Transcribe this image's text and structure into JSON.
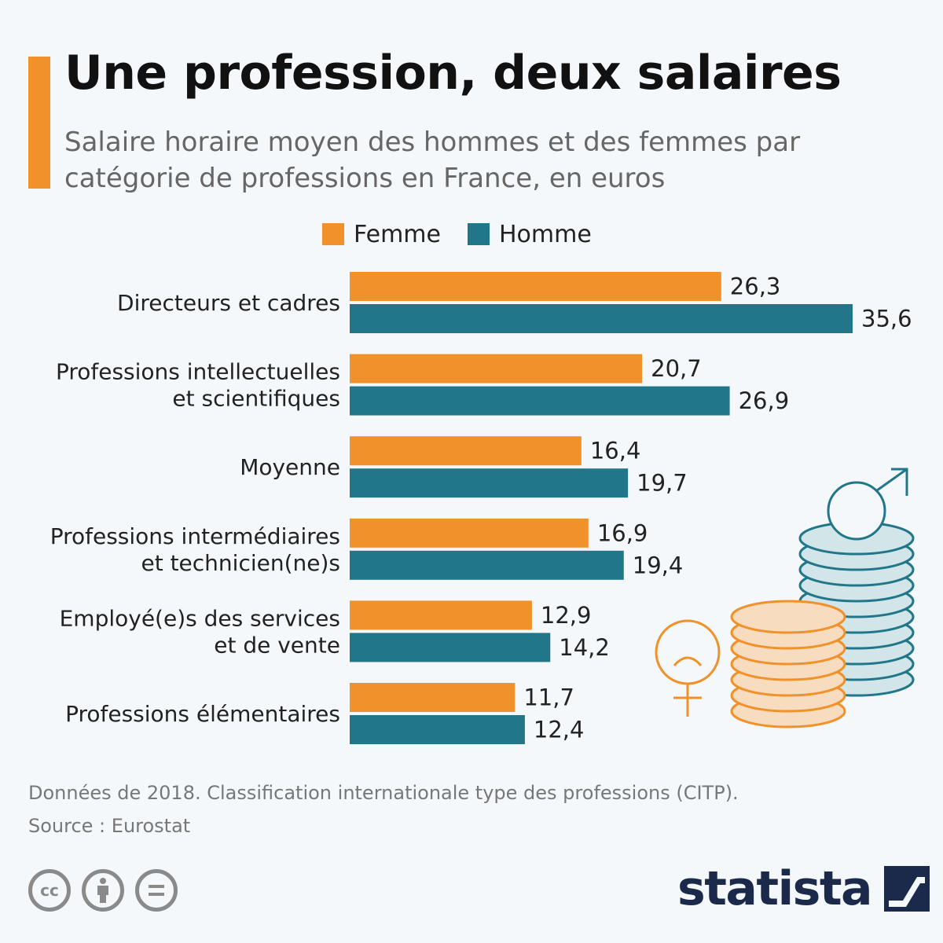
{
  "header": {
    "title": "Une profession, deux salaires",
    "subtitle": "Salaire horaire moyen des hommes et des femmes par catégorie de professions en France, en euros"
  },
  "colors": {
    "femme": "#f0912a",
    "homme": "#227689",
    "accent": "#f0912a",
    "brand": "#1b2a4a"
  },
  "chart_data": {
    "type": "bar",
    "orientation": "horizontal",
    "categories": [
      [
        "Directeurs et cadres"
      ],
      [
        "Professions intellectuelles",
        "et scientifiques"
      ],
      [
        "Moyenne"
      ],
      [
        "Professions intermédiaires",
        "et technicien(ne)s"
      ],
      [
        "Employé(e)s des services",
        "et de vente"
      ],
      [
        "Professions élémentaires"
      ]
    ],
    "series": [
      {
        "name": "Femme",
        "color": "#f0912a",
        "values": [
          26.3,
          20.7,
          16.4,
          16.9,
          12.9,
          11.7
        ],
        "labels": [
          "26,3",
          "20,7",
          "16,4",
          "16,9",
          "12,9",
          "11,7"
        ]
      },
      {
        "name": "Homme",
        "color": "#227689",
        "values": [
          35.6,
          26.9,
          19.7,
          19.4,
          14.2,
          12.4
        ],
        "labels": [
          "35,6",
          "26,9",
          "19,7",
          "19,4",
          "14,2",
          "12,4"
        ]
      }
    ],
    "xlim": [
      0,
      35.6
    ],
    "grid": false,
    "legend": "top"
  },
  "footnote": {
    "line1": "Données de 2018. Classification internationale type des professions (CITP).",
    "line2": "Source : Eurostat"
  },
  "footer": {
    "license_icons": [
      "creative-commons-icon",
      "attribution-icon",
      "no-derivatives-icon"
    ],
    "brand": "statista",
    "cc_text": "cc"
  }
}
